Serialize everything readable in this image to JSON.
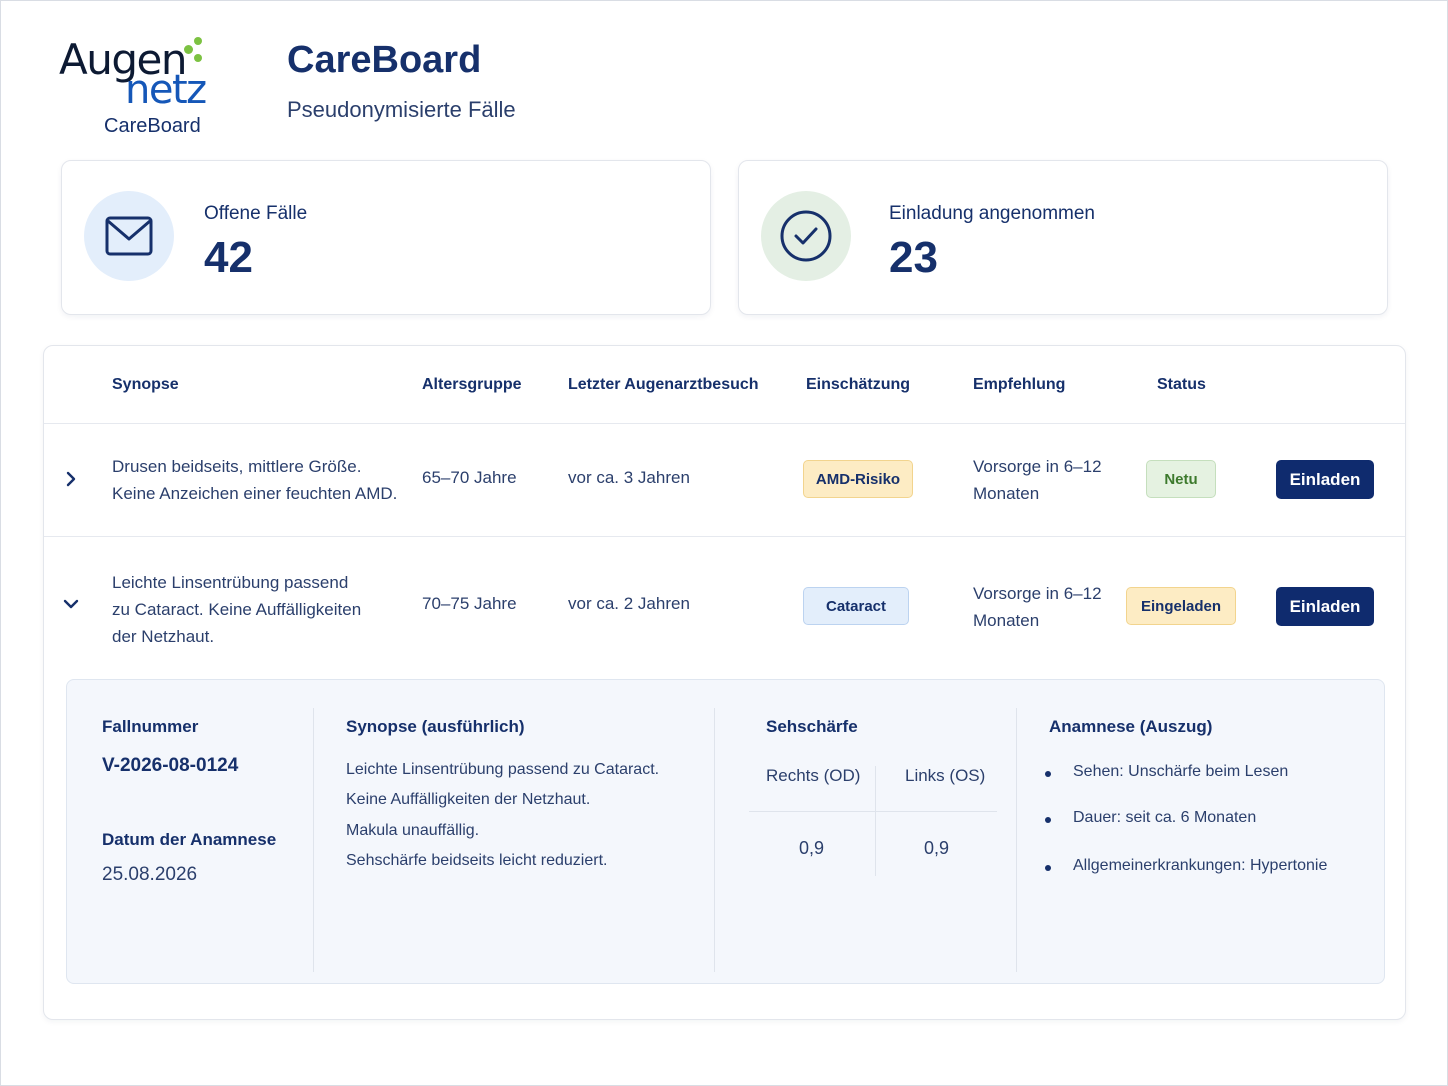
{
  "brand": {
    "logo_word1": "Augen",
    "logo_word2": "netz",
    "logo_sub": "CareBoard"
  },
  "header": {
    "title": "CareBoard",
    "subtitle": "Pseudonymisierte Fälle"
  },
  "stats": [
    {
      "label": "Offene Fälle",
      "value": "42",
      "icon": "envelope-icon"
    },
    {
      "label": "Einladung angenommen",
      "value": "23",
      "icon": "check-circle-icon"
    }
  ],
  "table": {
    "columns": [
      "Synopse",
      "Altersgruppe",
      "Letzter Augenarztbesuch",
      "Einschätzung",
      "Empfehlung",
      "Status"
    ],
    "rows": [
      {
        "synopse_line1": "Drusen beidseits, mittlere Größe.",
        "synopse_line2": "Keine Anzeichen einer feuchten AMD.",
        "synopse_line3": "",
        "altersgruppe": "65–70 Jahre",
        "besuch": "vor ca. 3 Jahren",
        "einschaetzung": "AMD-Risiko",
        "empfehlung_line1": "Vorsorge in 6–12",
        "empfehlung_line2": "Monaten",
        "status": "Netu",
        "action": "Einladen",
        "expanded": false
      },
      {
        "synopse_line1": "Leichte Linsentrübung passend",
        "synopse_line2": "zu Cataract. Keine Auffälligkeiten",
        "synopse_line3": "der Netzhaut.",
        "altersgruppe": "70–75 Jahre",
        "besuch": "vor ca. 2 Jahren",
        "einschaetzung": "Cataract",
        "empfehlung_line1": "Vorsorge in 6–12",
        "empfehlung_line2": "Monaten",
        "status": "Eingeladen",
        "action": "Einladen",
        "expanded": true
      }
    ]
  },
  "detail": {
    "fallnummer_label": "Fallnummer",
    "fallnummer": "V-2026-08-0124",
    "datum_label": "Datum der Anamnese",
    "datum": "25.08.2026",
    "synopse_label": "Synopse (ausführlich)",
    "synopse_lines": [
      "Leichte Linsentrübung passend zu Cataract.",
      "Keine Auffälligkeiten der Netzhaut.",
      "Makula unauffällig.",
      "Sehschärfe beidseits leicht reduziert."
    ],
    "sehschaerfe_label": "Sehschärfe",
    "rechts_label": "Rechts (OD)",
    "links_label": "Links (OS)",
    "rechts_value": "0,9",
    "links_value": "0,9",
    "anamnese_label": "Anamnese (Auszug)",
    "anamnese_items": [
      "Sehen: Unschärfe beim Lesen",
      "Dauer: seit ca. 6 Monaten",
      "Allgemeinerkrankungen: Hypertonie"
    ]
  },
  "colors": {
    "primary": "#0f2b6e",
    "text": "#16306b",
    "logo_green": "#7cc242",
    "logo_blue": "#1557b8",
    "amd_tag": "#fdecc4",
    "cataract_tag": "#e3eefb",
    "neu_tag": "#e5f2e1"
  }
}
